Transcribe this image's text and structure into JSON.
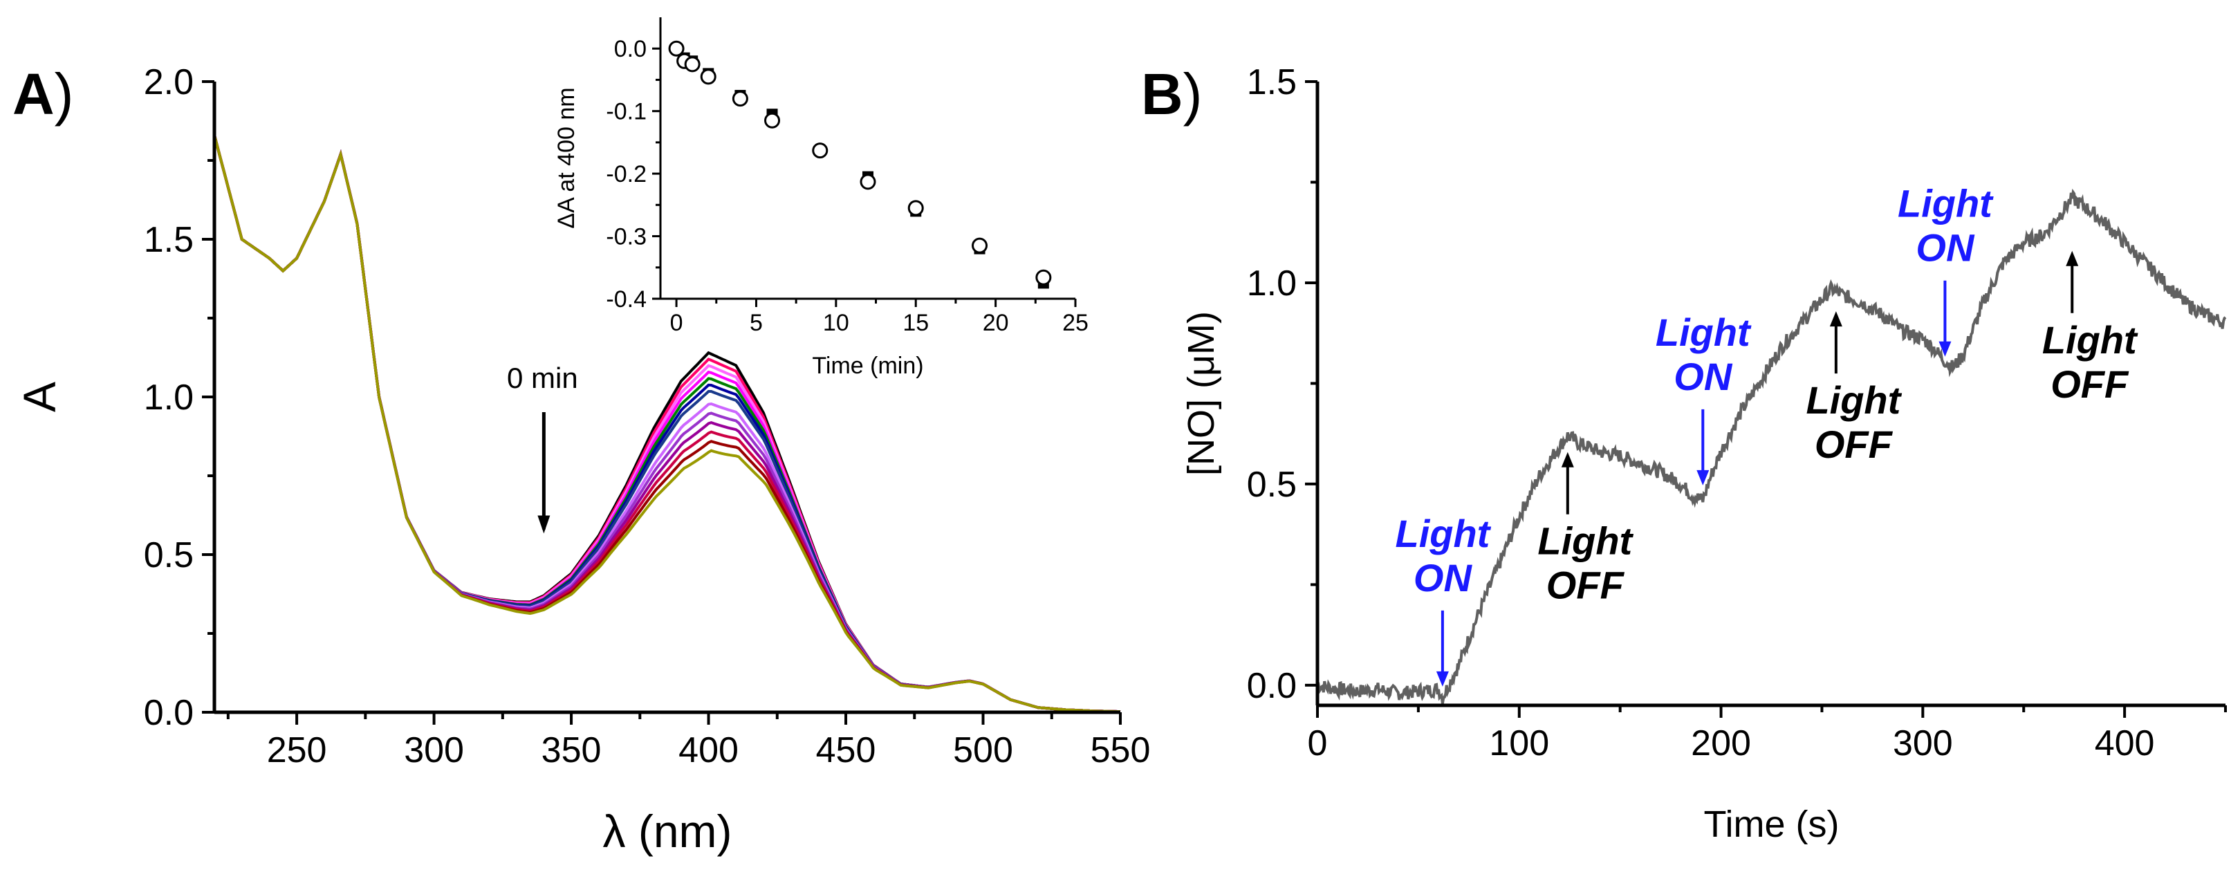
{
  "panel_labels": {
    "a_letter": "A",
    "b_letter": "B",
    "paren": ")"
  },
  "colors": {
    "axis": "#000000",
    "trace_B": "#606060",
    "light_on": "#1a1aff",
    "light_off": "#000000",
    "spectra": [
      "#000000",
      "#ff0066",
      "#ff66ff",
      "#ff00ff",
      "#008000",
      "#0000a0",
      "#1a3a8c",
      "#cc66ff",
      "#9933cc",
      "#990099",
      "#cc0044",
      "#990000",
      "#999900"
    ]
  },
  "chart_data": [
    {
      "id": "A-main",
      "type": "line",
      "title": "",
      "xlabel": "λ (nm)",
      "ylabel": "A",
      "xlim": [
        220,
        550
      ],
      "ylim": [
        0,
        2.0
      ],
      "xticks": [
        250,
        300,
        350,
        400,
        450,
        500,
        550
      ],
      "yticks": [
        "0.0",
        "0.5",
        "1.0",
        "1.5",
        "2.0"
      ],
      "ytick_values": [
        0,
        0.5,
        1.0,
        1.5,
        2.0
      ],
      "series_peak_at_400": [
        1.14,
        1.12,
        1.1,
        1.08,
        1.06,
        1.04,
        1.02,
        0.98,
        0.95,
        0.92,
        0.89,
        0.86,
        0.83
      ],
      "shape_points": {
        "x": [
          220,
          230,
          240,
          245,
          250,
          260,
          266,
          272,
          280,
          290,
          300,
          310,
          320,
          330,
          335,
          340,
          350,
          360,
          370,
          380,
          390,
          400,
          410,
          420,
          430,
          440,
          450,
          460,
          470,
          480,
          490,
          495,
          500,
          510,
          520,
          530,
          540,
          550
        ],
        "y_base": [
          1.83,
          1.5,
          1.44,
          1.4,
          1.44,
          1.62,
          1.77,
          1.55,
          1.0,
          0.62,
          0.45,
          0.38,
          0.36,
          0.35,
          0.35,
          0.37,
          0.44,
          0.56,
          0.72,
          0.9,
          1.05,
          1.14,
          1.1,
          0.95,
          0.72,
          0.48,
          0.28,
          0.15,
          0.09,
          0.08,
          0.095,
          0.1,
          0.09,
          0.04,
          0.015,
          0.008,
          0.004,
          0.002
        ]
      },
      "annotation": {
        "text": "0 min",
        "x": 340,
        "y_start": 1.0,
        "y_end": 0.58
      }
    },
    {
      "id": "A-inset",
      "type": "scatter",
      "xlabel": "Time (min)",
      "ylabel": "ΔA at 400 nm",
      "xlim": [
        -1,
        25
      ],
      "ylim": [
        -0.4,
        0.05
      ],
      "xticks": [
        0,
        5,
        10,
        15,
        20,
        25
      ],
      "yticks": [
        "0.0",
        "-0.1",
        "-0.2",
        "-0.3",
        "-0.4"
      ],
      "ytick_values": [
        0,
        -0.1,
        -0.2,
        -0.3,
        -0.4
      ],
      "series": [
        {
          "name": "filled",
          "x": [
            0,
            0.5,
            1,
            2,
            4,
            6,
            9,
            12,
            15,
            19,
            23
          ],
          "y": [
            0,
            -0.015,
            -0.02,
            -0.04,
            -0.075,
            -0.105,
            -0.163,
            -0.205,
            -0.26,
            -0.32,
            -0.375
          ]
        },
        {
          "name": "open",
          "x": [
            0,
            0.5,
            1,
            2,
            4,
            6,
            9,
            12,
            15,
            19,
            23
          ],
          "y": [
            0,
            -0.02,
            -0.025,
            -0.045,
            -0.08,
            -0.115,
            -0.163,
            -0.213,
            -0.255,
            -0.315,
            -0.366
          ]
        }
      ]
    },
    {
      "id": "B-main",
      "type": "line",
      "xlabel": "Time (s)",
      "ylabel": "[NO] (μM)",
      "xlim": [
        0,
        450
      ],
      "ylim": [
        -0.05,
        1.5
      ],
      "xticks": [
        0,
        100,
        200,
        300,
        400
      ],
      "yticks": [
        "0.0",
        "0.5",
        "1.0",
        "1.5"
      ],
      "ytick_values": [
        0,
        0.5,
        1.0,
        1.5
      ],
      "series": [
        {
          "name": "NO trace",
          "x": [
            0,
            10,
            20,
            30,
            40,
            50,
            60,
            62,
            70,
            80,
            90,
            100,
            110,
            118,
            124,
            130,
            140,
            150,
            160,
            170,
            180,
            186,
            191,
            195,
            200,
            210,
            220,
            230,
            240,
            250,
            255,
            260,
            270,
            280,
            290,
            300,
            305,
            310,
            315,
            320,
            330,
            340,
            350,
            360,
            368,
            374,
            380,
            390,
            400,
            410,
            420,
            430,
            440,
            450
          ],
          "y": [
            0,
            -0.01,
            -0.015,
            -0.01,
            -0.02,
            -0.015,
            -0.01,
            -0.03,
            0.05,
            0.18,
            0.3,
            0.42,
            0.52,
            0.58,
            0.62,
            0.6,
            0.58,
            0.57,
            0.55,
            0.53,
            0.5,
            0.47,
            0.46,
            0.52,
            0.58,
            0.68,
            0.76,
            0.84,
            0.9,
            0.96,
            0.985,
            0.97,
            0.95,
            0.92,
            0.88,
            0.86,
            0.84,
            0.81,
            0.79,
            0.82,
            0.95,
            1.05,
            1.1,
            1.12,
            1.17,
            1.21,
            1.19,
            1.15,
            1.1,
            1.05,
            1.0,
            0.95,
            0.92,
            0.9
          ]
        }
      ],
      "annotations": [
        {
          "label1": "Light",
          "label2": "ON",
          "kind": "on",
          "x": 62,
          "y": 0.0
        },
        {
          "label1": "Light",
          "label2": "OFF",
          "kind": "off",
          "x": 124,
          "y": 0.6
        },
        {
          "label1": "Light",
          "label2": "ON",
          "kind": "on",
          "x": 191,
          "y": 0.5
        },
        {
          "label1": "Light",
          "label2": "OFF",
          "kind": "off",
          "x": 257,
          "y": 0.95
        },
        {
          "label1": "Light",
          "label2": "ON",
          "kind": "on",
          "x": 311,
          "y": 0.82
        },
        {
          "label1": "Light",
          "label2": "OFF",
          "kind": "off",
          "x": 374,
          "y": 1.1
        }
      ]
    }
  ]
}
